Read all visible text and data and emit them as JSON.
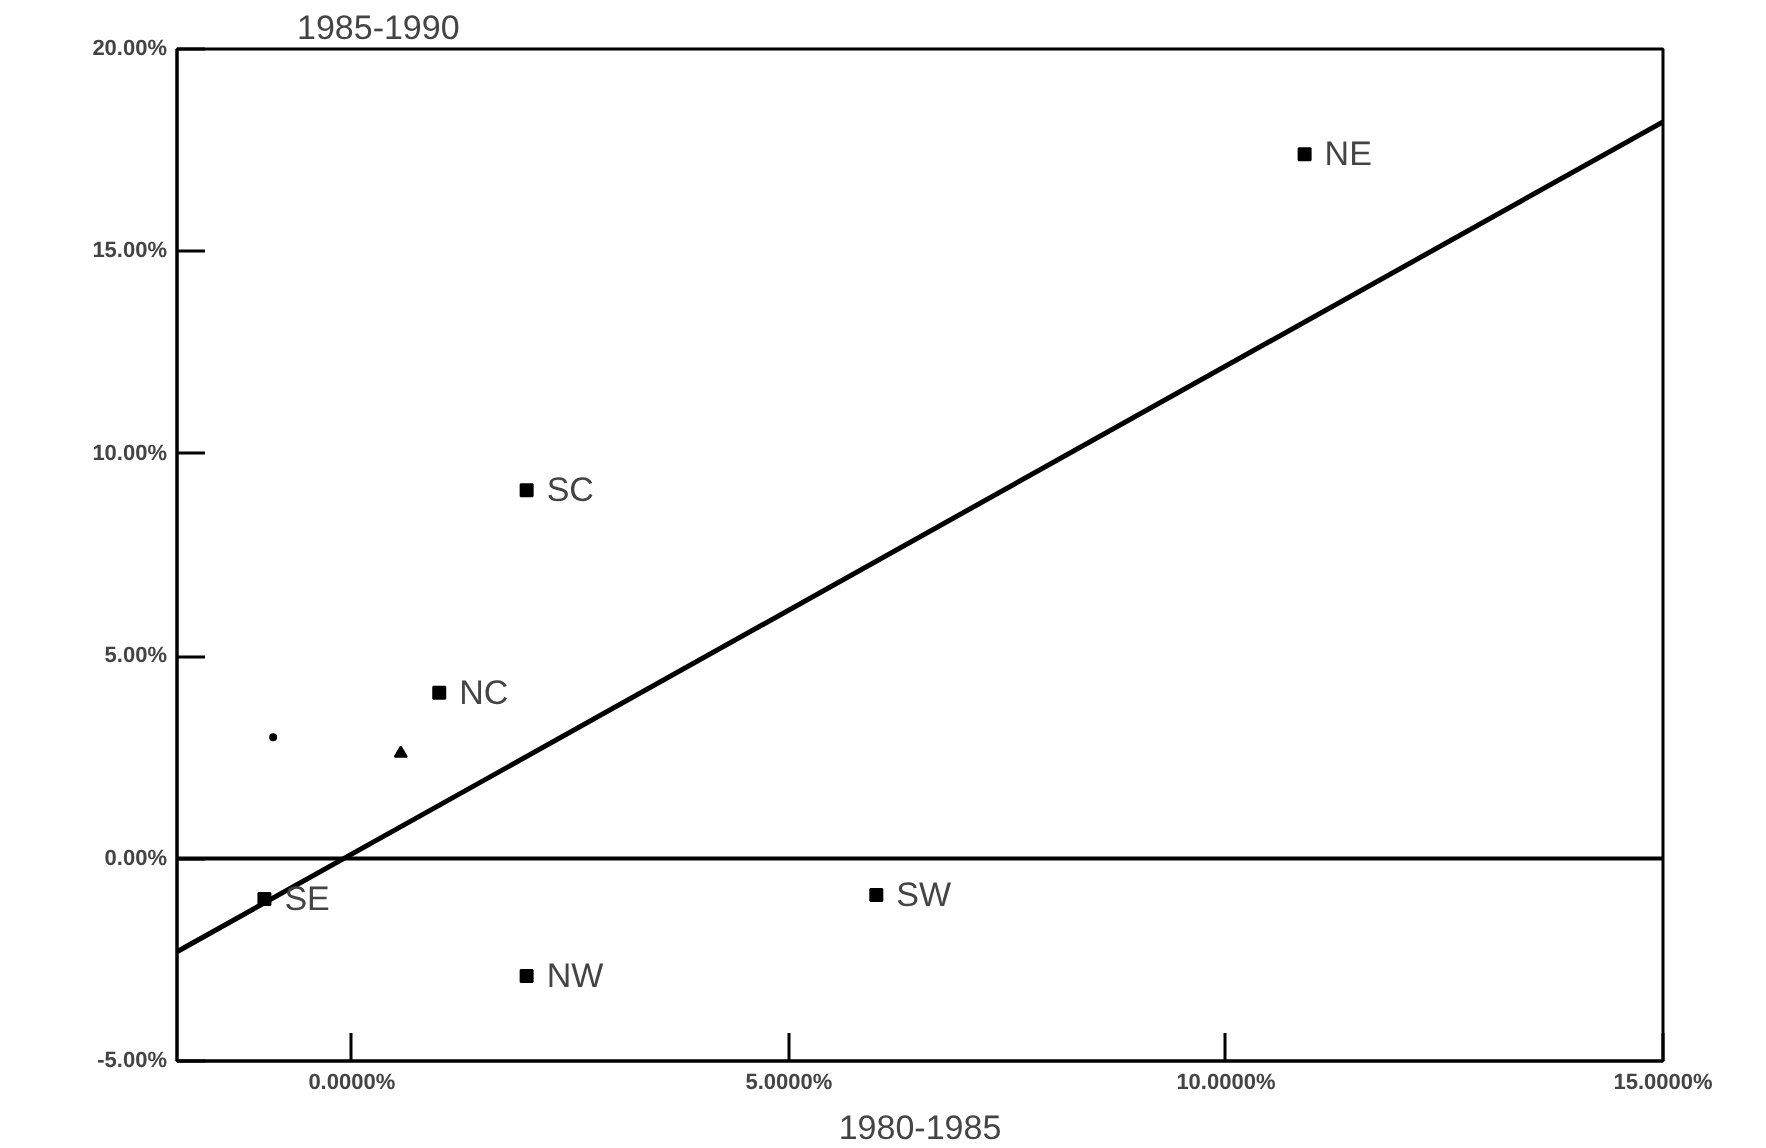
{
  "chart_data": {
    "type": "scatter",
    "xlabel": "1980-1985",
    "ylabel": "1985-1990",
    "xlim": [
      -2,
      15
    ],
    "ylim": [
      -5,
      20
    ],
    "xticks": [
      {
        "value": 0,
        "label": "0.0000%"
      },
      {
        "value": 5,
        "label": "5.0000%"
      },
      {
        "value": 10,
        "label": "10.0000%"
      },
      {
        "value": 15,
        "label": "15.0000%"
      }
    ],
    "yticks": [
      {
        "value": -5,
        "label": "-5.00%"
      },
      {
        "value": 0,
        "label": "0.00%"
      },
      {
        "value": 5,
        "label": "5.00%"
      },
      {
        "value": 10,
        "label": "10.00%"
      },
      {
        "value": 15,
        "label": "15.00%"
      },
      {
        "value": 20,
        "label": "20.00%"
      }
    ],
    "grid": false,
    "series": [
      {
        "color": "#000000",
        "marker": "square",
        "x": [
          10.9,
          2.0,
          1.0,
          -1.0,
          6.0,
          2.0
        ],
        "values": [
          17.4,
          9.1,
          4.1,
          -1.0,
          -0.9,
          -2.9
        ]
      },
      {
        "color": "#000000",
        "marker": "circle",
        "x": [
          -0.9
        ],
        "values": [
          3.0
        ]
      },
      {
        "color": "#000000",
        "marker": "triangle",
        "x": [
          0.56
        ],
        "values": [
          2.6
        ]
      },
      {
        "type": "line",
        "color": "#000000",
        "x": [
          -2,
          15
        ],
        "values": [
          -2.3,
          18.2
        ]
      }
    ],
    "ref_lines": [
      {
        "axis": "y",
        "value": 0,
        "color": "#000000"
      }
    ],
    "annotations": [
      {
        "text": "NE",
        "x": 10.9,
        "y": 17.4
      },
      {
        "text": "SC",
        "x": 2.0,
        "y": 9.1
      },
      {
        "text": "NC",
        "x": 1.0,
        "y": 4.1
      },
      {
        "text": "SE",
        "x": -1.0,
        "y": -1.0
      },
      {
        "text": "SW",
        "x": 6.0,
        "y": -0.9
      },
      {
        "text": "NW",
        "x": 2.0,
        "y": -2.9
      }
    ]
  }
}
